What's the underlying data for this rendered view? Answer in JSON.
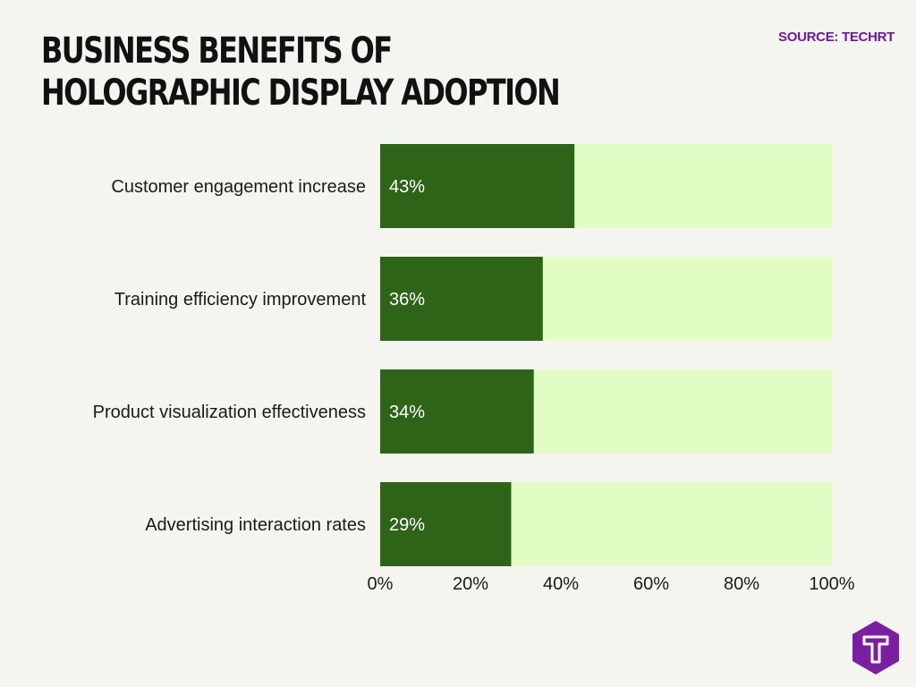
{
  "header": {
    "title": "Business Benefits of Holographic Display Adoption",
    "source": "SOURCE: TECHRT"
  },
  "colors": {
    "bar_fill": "#2e6418",
    "bar_track": "#e2fdc4",
    "accent": "#6a1b9a",
    "background": "#f5f5f0"
  },
  "logo": {
    "icon": "techrt-logo-icon",
    "color": "#7b1fa2"
  },
  "chart_data": {
    "type": "bar",
    "orientation": "horizontal",
    "categories": [
      "Customer engagement increase",
      "Training efficiency improvement",
      "Product visualization effectiveness",
      "Advertising interaction rates"
    ],
    "values": [
      43,
      36,
      34,
      29
    ],
    "value_labels": [
      "43%",
      "36%",
      "34%",
      "29%"
    ],
    "xlim": [
      0,
      100
    ],
    "x_ticks": [
      "0%",
      "20%",
      "40%",
      "60%",
      "80%",
      "100%"
    ],
    "x_tick_values": [
      0,
      20,
      40,
      60,
      80,
      100
    ],
    "grid": false,
    "legend": "none"
  }
}
